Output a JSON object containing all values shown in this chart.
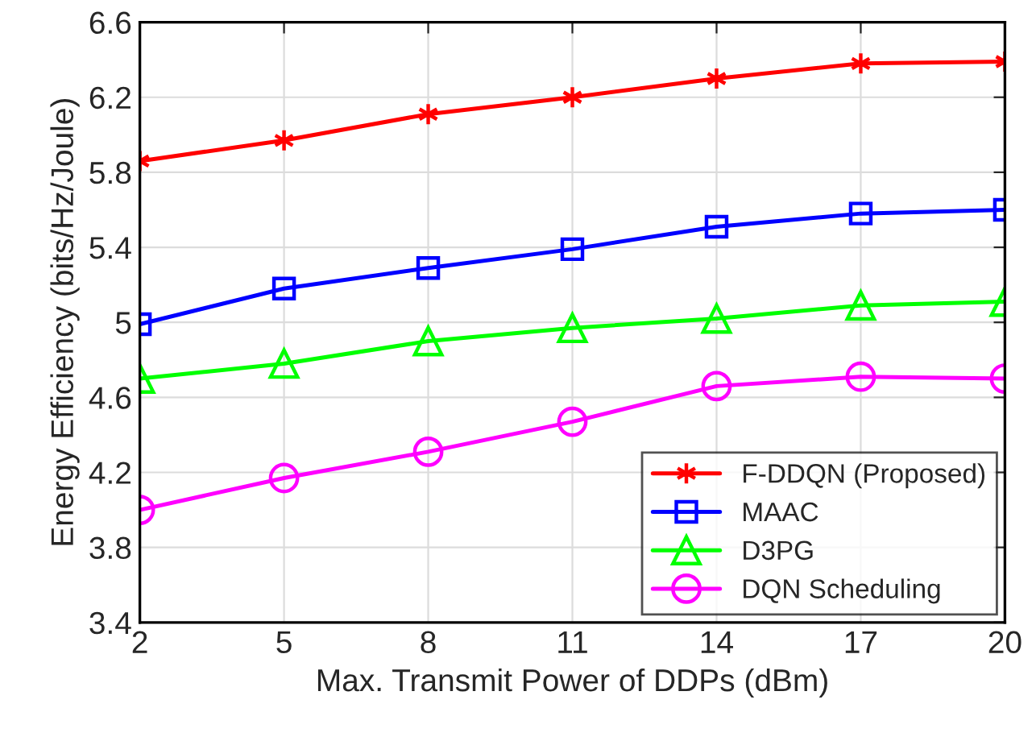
{
  "chart_data": {
    "type": "line",
    "xlabel": "Max. Transmit Power of DDPs (dBm)",
    "ylabel": "Energy Efficiency (bits/Hz/Joule)",
    "x": [
      2,
      5,
      8,
      11,
      14,
      17,
      20
    ],
    "xlim": [
      2,
      20
    ],
    "xticks": [
      2,
      5,
      8,
      11,
      14,
      17,
      20
    ],
    "ylim": [
      3.4,
      6.6
    ],
    "yticks": [
      3.4,
      3.8,
      4.2,
      4.6,
      5,
      5.4,
      5.8,
      6.2,
      6.6
    ],
    "grid": true,
    "legend": "bottom right",
    "line_style": "solid",
    "series": [
      {
        "name": "F-DDQN (Proposed)",
        "color": "#ff0000",
        "marker": "cross",
        "values": [
          5.86,
          5.97,
          6.11,
          6.2,
          6.3,
          6.38,
          6.39
        ]
      },
      {
        "name": "MAAC",
        "color": "#0000ff",
        "marker": "square",
        "values": [
          4.99,
          5.18,
          5.29,
          5.39,
          5.51,
          5.58,
          5.6
        ]
      },
      {
        "name": "D3PG",
        "color": "#00ff00",
        "marker": "triangle",
        "values": [
          4.7,
          4.78,
          4.9,
          4.97,
          5.02,
          5.09,
          5.11
        ]
      },
      {
        "name": "DQN Scheduling",
        "color": "#ff00ff",
        "marker": "circle",
        "values": [
          4.0,
          4.17,
          4.31,
          4.47,
          4.66,
          4.71,
          4.7
        ]
      }
    ]
  }
}
